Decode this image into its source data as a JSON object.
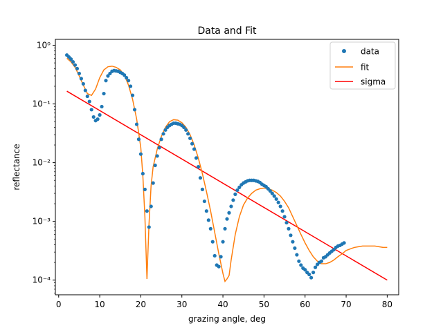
{
  "chart_data": {
    "type": "scatter",
    "title": "Data and Fit",
    "xlabel": "grazing angle, deg",
    "ylabel": "reflectance",
    "xlim": [
      -0.8,
      82.8
    ],
    "ylim_log10": [
      -4.25,
      0.1
    ],
    "yscale": "log",
    "grid": false,
    "legend_position": "top-right",
    "x_ticks": [
      0,
      10,
      20,
      30,
      40,
      50,
      60,
      70,
      80
    ],
    "y_ticks": [
      {
        "exp": -4,
        "label": "10⁻⁴"
      },
      {
        "exp": -3,
        "label": "10⁻³"
      },
      {
        "exp": -2,
        "label": "10⁻²"
      },
      {
        "exp": -1,
        "label": "10⁻¹"
      },
      {
        "exp": 0,
        "label": "10⁰"
      }
    ],
    "series": [
      {
        "name": "data",
        "kind": "points",
        "color": "#1f77b4",
        "points": [
          [
            2.0,
            0.68
          ],
          [
            2.5,
            0.63
          ],
          [
            3.0,
            0.58
          ],
          [
            3.5,
            0.52
          ],
          [
            4.0,
            0.46
          ],
          [
            4.5,
            0.4
          ],
          [
            5.0,
            0.33
          ],
          [
            5.5,
            0.27
          ],
          [
            6.0,
            0.22
          ],
          [
            6.5,
            0.17
          ],
          [
            7.0,
            0.135
          ],
          [
            7.5,
            0.11
          ],
          [
            8.0,
            0.08
          ],
          [
            8.5,
            0.06
          ],
          [
            9.0,
            0.052
          ],
          [
            9.5,
            0.055
          ],
          [
            10.0,
            0.065
          ],
          [
            10.5,
            0.09
          ],
          [
            11.0,
            0.15
          ],
          [
            11.5,
            0.25
          ],
          [
            12.0,
            0.3
          ],
          [
            12.5,
            0.33
          ],
          [
            13.0,
            0.36
          ],
          [
            13.5,
            0.37
          ],
          [
            14.0,
            0.365
          ],
          [
            14.5,
            0.36
          ],
          [
            15.0,
            0.345
          ],
          [
            15.5,
            0.33
          ],
          [
            16.0,
            0.31
          ],
          [
            16.5,
            0.28
          ],
          [
            17.0,
            0.25
          ],
          [
            17.5,
            0.2
          ],
          [
            18.0,
            0.14
          ],
          [
            18.5,
            0.08
          ],
          [
            19.0,
            0.045
          ],
          [
            19.5,
            0.025
          ],
          [
            20.0,
            0.014
          ],
          [
            20.5,
            0.0065
          ],
          [
            21.0,
            0.0035
          ],
          [
            21.5,
            0.0015
          ],
          [
            22.0,
            0.0008
          ],
          [
            22.5,
            0.0018
          ],
          [
            23.0,
            0.0045
          ],
          [
            23.5,
            0.009
          ],
          [
            24.0,
            0.013
          ],
          [
            24.5,
            0.018
          ],
          [
            25.0,
            0.025
          ],
          [
            25.5,
            0.031
          ],
          [
            26.0,
            0.036
          ],
          [
            26.5,
            0.04
          ],
          [
            27.0,
            0.043
          ],
          [
            27.5,
            0.045
          ],
          [
            28.0,
            0.047
          ],
          [
            28.5,
            0.047
          ],
          [
            29.0,
            0.046
          ],
          [
            29.5,
            0.045
          ],
          [
            30.0,
            0.043
          ],
          [
            30.5,
            0.04
          ],
          [
            31.0,
            0.036
          ],
          [
            31.5,
            0.031
          ],
          [
            32.0,
            0.026
          ],
          [
            32.5,
            0.021
          ],
          [
            33.0,
            0.017
          ],
          [
            33.5,
            0.012
          ],
          [
            34.0,
            0.0085
          ],
          [
            34.5,
            0.0055
          ],
          [
            35.0,
            0.0035
          ],
          [
            35.5,
            0.0022
          ],
          [
            36.0,
            0.0015
          ],
          [
            36.5,
            0.00105
          ],
          [
            37.0,
            0.00075
          ],
          [
            37.5,
            0.00045
          ],
          [
            38.0,
            0.00026
          ],
          [
            38.5,
            0.00018
          ],
          [
            39.0,
            0.00017
          ],
          [
            39.5,
            0.00025
          ],
          [
            40.0,
            0.00045
          ],
          [
            40.5,
            0.00075
          ],
          [
            41.0,
            0.0011
          ],
          [
            41.5,
            0.0014
          ],
          [
            42.0,
            0.0018
          ],
          [
            42.5,
            0.0023
          ],
          [
            43.0,
            0.0029
          ],
          [
            43.5,
            0.0034
          ],
          [
            44.0,
            0.0038
          ],
          [
            44.5,
            0.0042
          ],
          [
            45.0,
            0.0045
          ],
          [
            45.5,
            0.0047
          ],
          [
            46.0,
            0.0049
          ],
          [
            46.5,
            0.005
          ],
          [
            47.0,
            0.005
          ],
          [
            47.5,
            0.005
          ],
          [
            48.0,
            0.0049
          ],
          [
            48.5,
            0.0048
          ],
          [
            49.0,
            0.0046
          ],
          [
            49.5,
            0.0043
          ],
          [
            50.0,
            0.0041
          ],
          [
            50.5,
            0.0039
          ],
          [
            51.0,
            0.0036
          ],
          [
            51.5,
            0.0033
          ],
          [
            52.0,
            0.003
          ],
          [
            52.5,
            0.0027
          ],
          [
            53.0,
            0.0024
          ],
          [
            53.5,
            0.0021
          ],
          [
            54.0,
            0.0018
          ],
          [
            54.5,
            0.0015
          ],
          [
            55.0,
            0.0012
          ],
          [
            55.5,
            0.00095
          ],
          [
            56.0,
            0.00075
          ],
          [
            56.5,
            0.00058
          ],
          [
            57.0,
            0.00045
          ],
          [
            57.5,
            0.00035
          ],
          [
            58.0,
            0.00027
          ],
          [
            58.5,
            0.00021
          ],
          [
            59.0,
            0.00018
          ],
          [
            59.5,
            0.00016
          ],
          [
            60.0,
            0.00015
          ],
          [
            60.5,
            0.000135
          ],
          [
            61.0,
            0.000125
          ],
          [
            61.5,
            0.00011
          ],
          [
            62.0,
            0.000135
          ],
          [
            62.5,
            0.000165
          ],
          [
            63.0,
            0.000185
          ],
          [
            63.5,
            0.0002
          ],
          [
            64.0,
            0.00021
          ],
          [
            64.5,
            0.00024
          ],
          [
            65.0,
            0.00025
          ],
          [
            65.5,
            0.00027
          ],
          [
            66.0,
            0.00029
          ],
          [
            66.5,
            0.00031
          ],
          [
            67.0,
            0.00033
          ],
          [
            67.5,
            0.00036
          ],
          [
            68.0,
            0.00038
          ],
          [
            68.5,
            0.00039
          ],
          [
            69.0,
            0.00041
          ],
          [
            69.5,
            0.00043
          ]
        ]
      },
      {
        "name": "fit",
        "kind": "line",
        "color": "#ff7f0e",
        "points": [
          [
            2.0,
            0.6
          ],
          [
            3.0,
            0.52
          ],
          [
            4.0,
            0.42
          ],
          [
            5.0,
            0.3
          ],
          [
            6.0,
            0.21
          ],
          [
            7.0,
            0.15
          ],
          [
            8.0,
            0.14
          ],
          [
            9.0,
            0.18
          ],
          [
            10.0,
            0.28
          ],
          [
            11.0,
            0.38
          ],
          [
            12.0,
            0.43
          ],
          [
            13.0,
            0.44
          ],
          [
            14.0,
            0.42
          ],
          [
            15.0,
            0.38
          ],
          [
            16.0,
            0.31
          ],
          [
            17.0,
            0.21
          ],
          [
            18.0,
            0.12
          ],
          [
            19.0,
            0.055
          ],
          [
            20.0,
            0.018
          ],
          [
            20.5,
            0.006
          ],
          [
            21.0,
            0.0012
          ],
          [
            21.5,
            0.000105
          ],
          [
            22.0,
            0.0009
          ],
          [
            22.5,
            0.004
          ],
          [
            23.0,
            0.0085
          ],
          [
            24.0,
            0.017
          ],
          [
            25.0,
            0.028
          ],
          [
            26.0,
            0.04
          ],
          [
            27.0,
            0.05
          ],
          [
            28.0,
            0.054
          ],
          [
            29.0,
            0.053
          ],
          [
            30.0,
            0.048
          ],
          [
            31.0,
            0.04
          ],
          [
            32.0,
            0.03
          ],
          [
            33.0,
            0.02
          ],
          [
            34.0,
            0.012
          ],
          [
            35.0,
            0.0065
          ],
          [
            36.0,
            0.0032
          ],
          [
            37.0,
            0.0015
          ],
          [
            38.0,
            0.00065
          ],
          [
            39.0,
            0.00028
          ],
          [
            40.0,
            0.00013
          ],
          [
            40.5,
            9.5e-05
          ],
          [
            41.0,
            0.000105
          ],
          [
            41.5,
            0.00012
          ],
          [
            42.0,
            0.00022
          ],
          [
            43.0,
            0.0006
          ],
          [
            44.0,
            0.0012
          ],
          [
            45.0,
            0.0019
          ],
          [
            46.0,
            0.0025
          ],
          [
            47.0,
            0.003
          ],
          [
            48.0,
            0.0034
          ],
          [
            49.0,
            0.0036
          ],
          [
            50.0,
            0.0037
          ],
          [
            51.0,
            0.0036
          ],
          [
            52.0,
            0.0034
          ],
          [
            53.0,
            0.0031
          ],
          [
            54.0,
            0.0027
          ],
          [
            55.0,
            0.0022
          ],
          [
            56.0,
            0.0017
          ],
          [
            57.0,
            0.0012
          ],
          [
            58.0,
            0.00085
          ],
          [
            59.0,
            0.0006
          ],
          [
            60.0,
            0.00043
          ],
          [
            61.0,
            0.00032
          ],
          [
            62.0,
            0.00025
          ],
          [
            63.0,
            0.00021
          ],
          [
            64.0,
            0.00019
          ],
          [
            65.0,
            0.00019
          ],
          [
            66.0,
            0.0002
          ],
          [
            67.0,
            0.00022
          ],
          [
            68.0,
            0.00025
          ],
          [
            69.0,
            0.00028
          ],
          [
            70.0,
            0.00032
          ],
          [
            71.0,
            0.00034
          ],
          [
            72.0,
            0.00036
          ],
          [
            73.0,
            0.00037
          ],
          [
            74.0,
            0.00038
          ],
          [
            75.0,
            0.00038
          ],
          [
            76.0,
            0.00038
          ],
          [
            77.0,
            0.00038
          ],
          [
            78.0,
            0.00037
          ],
          [
            79.0,
            0.00036
          ],
          [
            80.0,
            0.00036
          ]
        ]
      },
      {
        "name": "sigma",
        "kind": "line",
        "color": "#ff0000",
        "points": [
          [
            2.0,
            0.165
          ],
          [
            80.0,
            0.0001
          ]
        ]
      }
    ]
  }
}
